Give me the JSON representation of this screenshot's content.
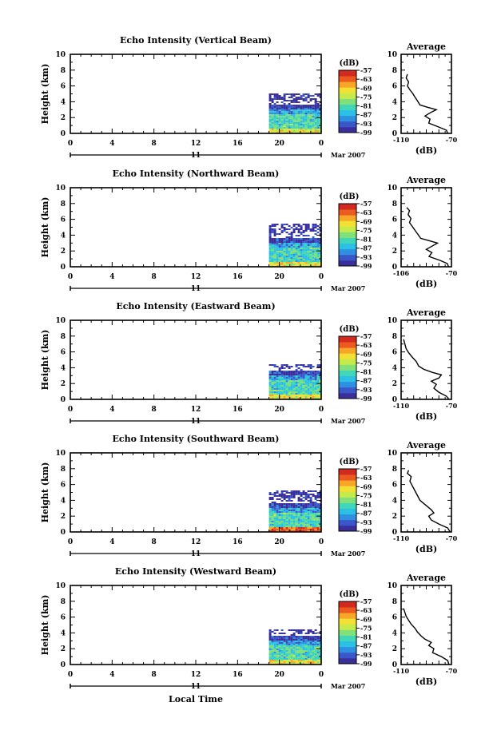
{
  "chart_data": [
    {
      "type": "heatmap",
      "title": "Echo Intensity (Vertical Beam)",
      "ylabel": "Height (km)",
      "xlim": [
        0,
        24
      ],
      "ylim": [
        0,
        10
      ],
      "x_ticks": [
        "0",
        "4",
        "8",
        "12",
        "16",
        "20",
        "0"
      ],
      "y_ticks": [
        "0",
        "2",
        "4",
        "6",
        "8",
        "10"
      ],
      "date_day": "11",
      "date_month": "Mar 2007",
      "colorbar": {
        "unit": "(dB)",
        "ticks": [
          "-57",
          "-63",
          "-69",
          "-75",
          "-81",
          "-87",
          "-93",
          "-99"
        ],
        "range": [
          -99,
          -57
        ]
      },
      "coverage": {
        "x_start": 19,
        "x_end": 24,
        "y_top": 5.2
      },
      "profile": {
        "title": "Average",
        "xlabel": "(dB)",
        "x_ticks": [
          "-110",
          "-70"
        ],
        "xlim": [
          -110,
          -70
        ],
        "ylim": [
          0,
          10
        ],
        "points": [
          [
            -73,
            0
          ],
          [
            -74,
            0.4
          ],
          [
            -80,
            0.8
          ],
          [
            -88,
            1.3
          ],
          [
            -87,
            1.8
          ],
          [
            -91,
            2.2
          ],
          [
            -87,
            2.6
          ],
          [
            -82,
            3.0
          ],
          [
            -89,
            3.3
          ],
          [
            -95,
            3.6
          ],
          [
            -97,
            4.1
          ],
          [
            -99,
            4.6
          ],
          [
            -101,
            5.1
          ],
          [
            -103,
            5.5
          ],
          [
            -105,
            6.0
          ],
          [
            -104,
            6.5
          ],
          [
            -106,
            7.0
          ],
          [
            -105,
            7.5
          ]
        ]
      }
    },
    {
      "type": "heatmap",
      "title": "Echo Intensity (Northward Beam)",
      "ylabel": "Height (km)",
      "xlim": [
        0,
        24
      ],
      "ylim": [
        0,
        10
      ],
      "x_ticks": [
        "0",
        "4",
        "8",
        "12",
        "16",
        "20",
        "0"
      ],
      "y_ticks": [
        "0",
        "2",
        "4",
        "6",
        "8",
        "10"
      ],
      "date_day": "11",
      "date_month": "Mar 2007",
      "colorbar": {
        "unit": "(dB)",
        "ticks": [
          "-57",
          "-63",
          "-69",
          "-75",
          "-81",
          "-87",
          "-93",
          "-99"
        ],
        "range": [
          -99,
          -57
        ]
      },
      "coverage": {
        "x_start": 19,
        "x_end": 24,
        "y_top": 5.5
      },
      "profile": {
        "title": "Average",
        "xlabel": "(dB)",
        "x_ticks": [
          "-106",
          "-70"
        ],
        "xlim": [
          -106,
          -70
        ],
        "ylim": [
          0,
          10
        ],
        "points": [
          [
            -72,
            0
          ],
          [
            -73,
            0.4
          ],
          [
            -78,
            0.8
          ],
          [
            -86,
            1.3
          ],
          [
            -84,
            1.8
          ],
          [
            -88,
            2.2
          ],
          [
            -84,
            2.6
          ],
          [
            -80,
            3.0
          ],
          [
            -86,
            3.3
          ],
          [
            -92,
            3.6
          ],
          [
            -94,
            4.1
          ],
          [
            -96,
            4.6
          ],
          [
            -98,
            5.1
          ],
          [
            -100,
            5.6
          ],
          [
            -99,
            6.1
          ],
          [
            -101,
            6.6
          ],
          [
            -100,
            7.1
          ],
          [
            -102,
            7.5
          ]
        ]
      }
    },
    {
      "type": "heatmap",
      "title": "Echo Intensity (Eastward Beam)",
      "ylabel": "Height (km)",
      "xlim": [
        0,
        24
      ],
      "ylim": [
        0,
        10
      ],
      "x_ticks": [
        "0",
        "4",
        "8",
        "12",
        "16",
        "20",
        "0"
      ],
      "y_ticks": [
        "0",
        "2",
        "4",
        "6",
        "8",
        "10"
      ],
      "date_day": "11",
      "date_month": "Mar 2007",
      "colorbar": {
        "unit": "(dB)",
        "ticks": [
          "-57",
          "-63",
          "-69",
          "-75",
          "-81",
          "-87",
          "-93",
          "-99"
        ],
        "range": [
          -99,
          -57
        ]
      },
      "coverage": {
        "x_start": 19,
        "x_end": 24,
        "y_top": 4.6
      },
      "profile": {
        "title": "Average",
        "xlabel": "(dB)",
        "x_ticks": [
          "-110",
          "-70"
        ],
        "xlim": [
          -110,
          -70
        ],
        "ylim": [
          0,
          10
        ],
        "points": [
          [
            -72,
            0
          ],
          [
            -74,
            0.4
          ],
          [
            -80,
            0.9
          ],
          [
            -84,
            1.4
          ],
          [
            -82,
            1.9
          ],
          [
            -86,
            2.3
          ],
          [
            -80,
            2.7
          ],
          [
            -78,
            3.1
          ],
          [
            -85,
            3.4
          ],
          [
            -92,
            3.8
          ],
          [
            -96,
            4.2
          ],
          [
            -98,
            4.8
          ],
          [
            -101,
            5.3
          ],
          [
            -104,
            5.9
          ],
          [
            -106,
            6.4
          ],
          [
            -107,
            7.0
          ],
          [
            -108,
            7.6
          ]
        ]
      }
    },
    {
      "type": "heatmap",
      "title": "Echo Intensity (Southward Beam)",
      "ylabel": "Height (km)",
      "xlim": [
        0,
        24
      ],
      "ylim": [
        0,
        10
      ],
      "x_ticks": [
        "0",
        "4",
        "8",
        "12",
        "16",
        "20",
        "0"
      ],
      "y_ticks": [
        "0",
        "2",
        "4",
        "6",
        "8",
        "10"
      ],
      "date_day": "11",
      "date_month": "Mar 2007",
      "colorbar": {
        "unit": "(dB)",
        "ticks": [
          "-57",
          "-63",
          "-69",
          "-75",
          "-81",
          "-87",
          "-93",
          "-99"
        ],
        "range": [
          -99,
          -57
        ]
      },
      "coverage": {
        "x_start": 19,
        "x_end": 24,
        "y_top": 5.4
      },
      "profile": {
        "title": "Average",
        "xlabel": "(dB)",
        "x_ticks": [
          "-110",
          "-70"
        ],
        "xlim": [
          -110,
          -70
        ],
        "ylim": [
          0,
          10
        ],
        "points": [
          [
            -71,
            0
          ],
          [
            -73,
            0.5
          ],
          [
            -80,
            1.0
          ],
          [
            -86,
            1.5
          ],
          [
            -88,
            2.0
          ],
          [
            -84,
            2.4
          ],
          [
            -86,
            2.8
          ],
          [
            -89,
            3.2
          ],
          [
            -92,
            3.6
          ],
          [
            -95,
            4.0
          ],
          [
            -97,
            4.6
          ],
          [
            -99,
            5.2
          ],
          [
            -101,
            5.8
          ],
          [
            -103,
            6.4
          ],
          [
            -102,
            7.0
          ],
          [
            -105,
            7.4
          ],
          [
            -104,
            7.8
          ]
        ]
      }
    },
    {
      "type": "heatmap",
      "title": "Echo Intensity (Westward Beam)",
      "ylabel": "Height (km)",
      "xlim": [
        0,
        24
      ],
      "ylim": [
        0,
        10
      ],
      "x_ticks": [
        "0",
        "4",
        "8",
        "12",
        "16",
        "20",
        "0"
      ],
      "y_ticks": [
        "0",
        "2",
        "4",
        "6",
        "8",
        "10"
      ],
      "date_day": "11",
      "date_month": "Mar 2007",
      "xlabel": "Local Time",
      "colorbar": {
        "unit": "(dB)",
        "ticks": [
          "-57",
          "-63",
          "-69",
          "-75",
          "-81",
          "-87",
          "-93",
          "-99"
        ],
        "range": [
          -99,
          -57
        ]
      },
      "coverage": {
        "x_start": 19,
        "x_end": 24,
        "y_top": 4.6
      },
      "profile": {
        "title": "Average",
        "xlabel": "(dB)",
        "x_ticks": [
          "-110",
          "-70"
        ],
        "xlim": [
          -110,
          -70
        ],
        "ylim": [
          0,
          10
        ],
        "points": [
          [
            -72,
            0
          ],
          [
            -73,
            0.5
          ],
          [
            -78,
            1.0
          ],
          [
            -85,
            1.5
          ],
          [
            -84,
            2.0
          ],
          [
            -88,
            2.4
          ],
          [
            -86,
            2.8
          ],
          [
            -91,
            3.2
          ],
          [
            -94,
            3.6
          ],
          [
            -97,
            4.1
          ],
          [
            -99,
            4.6
          ],
          [
            -102,
            5.1
          ],
          [
            -104,
            5.6
          ],
          [
            -106,
            6.1
          ],
          [
            -107,
            6.6
          ],
          [
            -108,
            7.1
          ]
        ]
      }
    }
  ]
}
